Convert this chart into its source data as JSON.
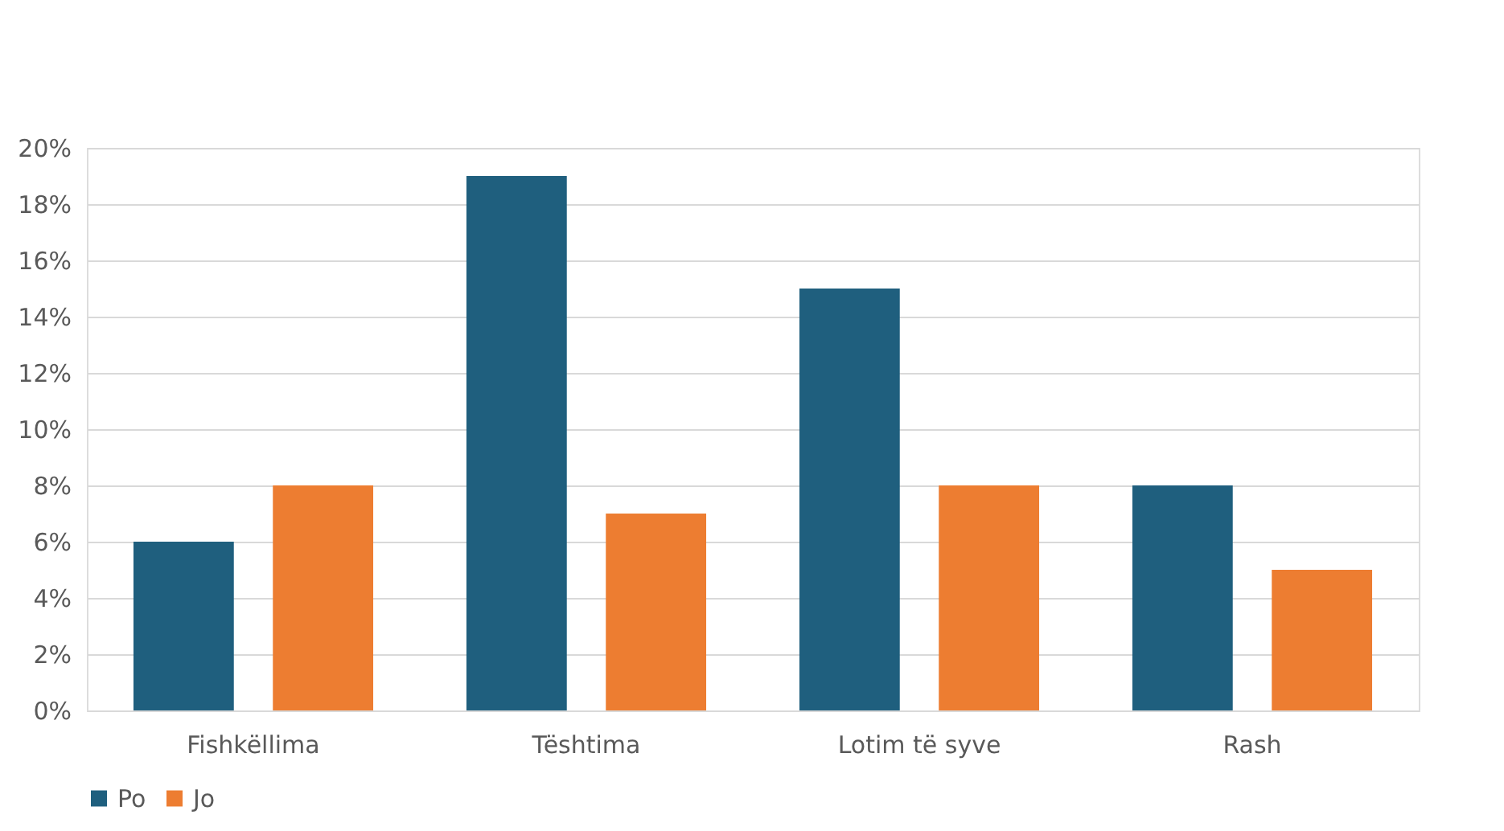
{
  "chart_data": {
    "type": "bar",
    "categories": [
      "Fishkëllima",
      "Tështima",
      "Lotim të syve",
      "Rash"
    ],
    "series": [
      {
        "name": "Po",
        "color": "#1f5f7e",
        "values": [
          6,
          19,
          15,
          8
        ]
      },
      {
        "name": "Jo",
        "color": "#ed7d31",
        "values": [
          8,
          7,
          8,
          5
        ]
      }
    ],
    "ylim": [
      0,
      20
    ],
    "yticks": [
      {
        "value": 0,
        "label": "0%"
      },
      {
        "value": 2,
        "label": "2%"
      },
      {
        "value": 4,
        "label": "4%"
      },
      {
        "value": 6,
        "label": "6%"
      },
      {
        "value": 8,
        "label": "8%"
      },
      {
        "value": 10,
        "label": "10%"
      },
      {
        "value": 12,
        "label": "12%"
      },
      {
        "value": 14,
        "label": "14%"
      },
      {
        "value": 16,
        "label": "16%"
      },
      {
        "value": 18,
        "label": "18%"
      },
      {
        "value": 20,
        "label": "20%"
      }
    ],
    "grid": "y",
    "legend": "bottom"
  }
}
